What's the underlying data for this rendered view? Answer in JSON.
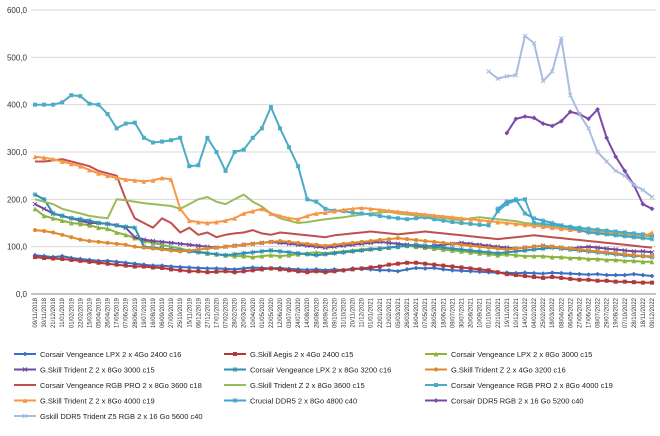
{
  "chart_data": {
    "type": "line",
    "ylim": [
      0,
      600
    ],
    "yticks": [
      "0,0",
      "100,0",
      "200,0",
      "300,0",
      "400,0",
      "500,0",
      "600,0"
    ],
    "grid": true,
    "legend_placement": "bottom",
    "categories": [
      "09/11/2018",
      "30/11/2018",
      "21/12/2018",
      "11/01/2019",
      "01/02/2019",
      "22/02/2019",
      "15/03/2019",
      "05/04/2019",
      "26/04/2019",
      "17/05/2019",
      "07/06/2019",
      "28/06/2019",
      "19/07/2019",
      "16/08/2019",
      "06/09/2019",
      "27/09/2019",
      "25/10/2019",
      "15/11/2019",
      "06/12/2019",
      "27/12/2019",
      "17/01/2020",
      "07/02/2020",
      "28/02/2020",
      "20/03/2020",
      "10/04/2020",
      "01/05/2020",
      "22/05/2020",
      "12/06/2020",
      "03/07/2020",
      "24/07/2020",
      "14/08/2020",
      "28/08/2020",
      "18/09/2020",
      "09/10/2020",
      "31/10/2020",
      "20/11/2020",
      "11/12/2020",
      "01/01/2021",
      "22/01/2021",
      "12/02/2021",
      "05/03/2021",
      "26/03/2021",
      "16/04/2021",
      "07/05/2021",
      "28/05/2021",
      "18/06/2021",
      "09/07/2021",
      "30/07/2021",
      "20/08/2021",
      "10/09/2021",
      "01/10/2021",
      "22/10/2021",
      "19/11/2021",
      "10/12/2021",
      "14/01/2022",
      "04/02/2022",
      "25/02/2022",
      "18/03/2022",
      "08/04/2022",
      "06/05/2022",
      "27/05/2022",
      "17/06/2022",
      "08/07/2022",
      "29/07/2022",
      "19/08/2022",
      "07/10/2022",
      "28/10/2022",
      "18/11/2022",
      "09/12/2022"
    ],
    "series": [
      {
        "name": "Corsair Vengeance LPX 2 x 4Go 2400 c16",
        "color": "#3a6fc4",
        "marker": "diamond",
        "values": [
          82,
          80,
          78,
          80,
          76,
          74,
          72,
          70,
          70,
          68,
          66,
          64,
          62,
          60,
          60,
          58,
          57,
          56,
          55,
          54,
          54,
          53,
          52,
          54,
          56,
          55,
          54,
          55,
          53,
          52,
          51,
          52,
          50,
          52,
          50,
          54,
          53,
          52,
          50,
          50,
          48,
          52,
          55,
          54,
          55,
          52,
          50,
          49,
          48,
          47,
          46,
          45,
          45,
          44,
          45,
          44,
          43,
          45,
          44,
          43,
          42,
          41,
          42,
          40,
          40,
          40,
          42,
          40,
          38
        ]
      },
      {
        "name": "G.Skill Aegis 2 x 4Go 2400 c15",
        "color": "#b03a3a",
        "marker": "square",
        "values": [
          78,
          76,
          75,
          74,
          72,
          70,
          68,
          66,
          64,
          62,
          60,
          58,
          58,
          56,
          55,
          52,
          50,
          48,
          48,
          46,
          47,
          48,
          46,
          48,
          50,
          52,
          54,
          52,
          50,
          48,
          46,
          48,
          46,
          48,
          50,
          52,
          54,
          56,
          58,
          62,
          64,
          66,
          66,
          64,
          62,
          60,
          58,
          56,
          54,
          52,
          50,
          46,
          42,
          40,
          38,
          36,
          34,
          36,
          34,
          32,
          30,
          30,
          28,
          28,
          26,
          26,
          25,
          24,
          24
        ]
      },
      {
        "name": "Corsair Vengeance LPX 2 x 8Go 3000 c15",
        "color": "#8db43a",
        "marker": "triangle",
        "values": [
          180,
          165,
          160,
          155,
          150,
          148,
          145,
          140,
          138,
          130,
          125,
          118,
          112,
          108,
          104,
          100,
          96,
          92,
          90,
          86,
          84,
          82,
          80,
          80,
          78,
          80,
          82,
          80,
          82,
          84,
          86,
          88,
          86,
          88,
          90,
          92,
          94,
          96,
          96,
          98,
          100,
          102,
          100,
          98,
          96,
          94,
          92,
          90,
          88,
          86,
          84,
          82,
          84,
          82,
          80,
          80,
          80,
          78,
          78,
          76,
          76,
          74,
          74,
          72,
          72,
          70,
          70,
          68,
          68
        ]
      },
      {
        "name": "G.Skill Trident Z 2 x 8Go 3000 c15",
        "color": "#6f4aa0",
        "marker": "x",
        "values": [
          190,
          180,
          170,
          165,
          160,
          155,
          150,
          150,
          148,
          145,
          140,
          120,
          115,
          112,
          110,
          108,
          106,
          104,
          102,
          100,
          98,
          100,
          102,
          104,
          106,
          108,
          110,
          108,
          106,
          104,
          102,
          100,
          98,
          100,
          102,
          104,
          106,
          108,
          110,
          108,
          106,
          104,
          102,
          100,
          102,
          104,
          106,
          108,
          106,
          104,
          102,
          100,
          98,
          96,
          98,
          100,
          102,
          100,
          98,
          96,
          98,
          100,
          98,
          96,
          94,
          92,
          90,
          90,
          88
        ]
      },
      {
        "name": "Corsair Vengeance LPX 2 x 8Go 3200 c16",
        "color": "#2f8fb0",
        "marker": "star",
        "values": [
          210,
          200,
          170,
          165,
          160,
          158,
          155,
          150,
          148,
          145,
          142,
          140,
          100,
          98,
          96,
          94,
          92,
          90,
          88,
          86,
          84,
          82,
          84,
          86,
          88,
          90,
          92,
          90,
          88,
          86,
          84,
          82,
          84,
          86,
          88,
          90,
          92,
          94,
          96,
          98,
          100,
          102,
          104,
          102,
          100,
          98,
          96,
          94,
          92,
          90,
          88,
          86,
          88,
          90,
          92,
          94,
          96,
          98,
          96,
          94,
          92,
          90,
          88,
          86,
          84,
          82,
          80,
          80,
          78
        ]
      },
      {
        "name": "G.Skill Trident Z 2 x 4Go 3200 c16",
        "color": "#e08a2e",
        "marker": "circle",
        "values": [
          135,
          133,
          130,
          125,
          120,
          115,
          112,
          110,
          108,
          106,
          104,
          100,
          98,
          96,
          94,
          92,
          90,
          92,
          94,
          96,
          98,
          100,
          102,
          104,
          106,
          108,
          110,
          112,
          110,
          108,
          106,
          104,
          102,
          104,
          106,
          108,
          110,
          112,
          114,
          116,
          118,
          116,
          114,
          112,
          110,
          108,
          106,
          104,
          102,
          100,
          98,
          96,
          94,
          96,
          98,
          100,
          102,
          100,
          98,
          96,
          94,
          92,
          90,
          88,
          86,
          84,
          82,
          80,
          80
        ]
      },
      {
        "name": "Corsair Vengeance RGB PRO 2 x 8Go 3600 c18",
        "color": "#c0504d",
        "marker": "none",
        "values": [
          280,
          280,
          282,
          285,
          280,
          275,
          270,
          260,
          255,
          250,
          200,
          160,
          150,
          140,
          160,
          150,
          130,
          140,
          125,
          130,
          120,
          125,
          128,
          130,
          135,
          128,
          125,
          130,
          128,
          126,
          124,
          122,
          120,
          124,
          126,
          128,
          130,
          132,
          130,
          128,
          126,
          128,
          130,
          132,
          130,
          128,
          126,
          124,
          122,
          120,
          118,
          116,
          118,
          120,
          122,
          124,
          122,
          120,
          118,
          116,
          114,
          112,
          110,
          108,
          106,
          104,
          102,
          100,
          98
        ]
      },
      {
        "name": "G.Skill Trident Z 2 x 8Go 3600 c15",
        "color": "#9bbb59",
        "marker": "none",
        "values": [
          200,
          195,
          190,
          180,
          175,
          170,
          165,
          162,
          160,
          200,
          198,
          195,
          192,
          190,
          188,
          186,
          180,
          190,
          200,
          205,
          195,
          190,
          200,
          210,
          195,
          185,
          170,
          160,
          155,
          150,
          152,
          155,
          158,
          160,
          162,
          165,
          168,
          170,
          172,
          174,
          170,
          168,
          166,
          164,
          162,
          160,
          158,
          156,
          160,
          162,
          160,
          158,
          156,
          154,
          150,
          148,
          146,
          144,
          142,
          140,
          138,
          136,
          134,
          132,
          130,
          128,
          126,
          124,
          120
        ]
      },
      {
        "name": "Corsair Vengeance RGB PRO 2 x 8Go 4000 c19",
        "color": "#4bacc6",
        "marker": "square",
        "values": [
          400,
          400,
          400,
          405,
          420,
          418,
          402,
          400,
          380,
          350,
          360,
          362,
          330,
          320,
          322,
          325,
          330,
          270,
          272,
          330,
          300,
          260,
          300,
          305,
          330,
          350,
          395,
          350,
          310,
          270,
          200,
          195,
          180,
          176,
          175,
          172,
          170,
          168,
          165,
          162,
          160,
          158,
          160,
          162,
          158,
          155,
          152,
          150,
          148,
          146,
          145,
          175,
          190,
          198,
          200,
          150,
          148,
          146,
          144,
          142,
          140,
          138,
          136,
          134,
          132,
          130,
          128,
          126,
          124
        ]
      },
      {
        "name": "G.Skill Trident Z 2 x 8Go 4000 c19",
        "color": "#f79646",
        "marker": "triangle",
        "values": [
          290,
          288,
          285,
          280,
          275,
          270,
          262,
          255,
          250,
          245,
          242,
          240,
          238,
          240,
          245,
          242,
          180,
          155,
          152,
          150,
          152,
          155,
          160,
          170,
          175,
          180,
          170,
          165,
          160,
          158,
          165,
          170,
          172,
          175,
          178,
          180,
          182,
          180,
          178,
          176,
          174,
          172,
          170,
          168,
          166,
          164,
          162,
          160,
          158,
          156,
          154,
          152,
          150,
          148,
          146,
          144,
          142,
          140,
          138,
          136,
          134,
          132,
          130,
          128,
          126,
          124,
          122,
          120,
          130
        ]
      },
      {
        "name": "Crucial DDR5 2 x 8Go 4800 c40",
        "color": "#3fa7c9",
        "marker": "star",
        "values": [
          null,
          null,
          null,
          null,
          null,
          null,
          null,
          null,
          null,
          null,
          null,
          null,
          null,
          null,
          null,
          null,
          null,
          null,
          null,
          null,
          null,
          null,
          null,
          null,
          null,
          null,
          null,
          null,
          null,
          null,
          null,
          null,
          null,
          null,
          null,
          null,
          null,
          null,
          null,
          null,
          null,
          null,
          null,
          null,
          null,
          null,
          null,
          null,
          null,
          null,
          null,
          180,
          195,
          200,
          170,
          160,
          155,
          150,
          145,
          140,
          135,
          130,
          128,
          126,
          124,
          122,
          120,
          118,
          116
        ]
      },
      {
        "name": "Corsair DDR5 RGB 2 x 16 Go 5200 c40",
        "color": "#7a4aa8",
        "marker": "diamond",
        "values": [
          null,
          null,
          null,
          null,
          null,
          null,
          null,
          null,
          null,
          null,
          null,
          null,
          null,
          null,
          null,
          null,
          null,
          null,
          null,
          null,
          null,
          null,
          null,
          null,
          null,
          null,
          null,
          null,
          null,
          null,
          null,
          null,
          null,
          null,
          null,
          null,
          null,
          null,
          null,
          null,
          null,
          null,
          null,
          null,
          null,
          null,
          null,
          null,
          null,
          null,
          null,
          null,
          340,
          370,
          375,
          372,
          360,
          355,
          365,
          385,
          380,
          370,
          390,
          330,
          290,
          260,
          230,
          190,
          180
        ]
      },
      {
        "name": "Gskill DDR5 Trident Z5 RGB 2 x 16 Go 5600 c40",
        "color": "#a8bde0",
        "marker": "x",
        "values": [
          null,
          null,
          null,
          null,
          null,
          null,
          null,
          null,
          null,
          null,
          null,
          null,
          null,
          null,
          null,
          null,
          null,
          null,
          null,
          null,
          null,
          null,
          null,
          null,
          null,
          null,
          null,
          null,
          null,
          null,
          null,
          null,
          null,
          null,
          null,
          null,
          null,
          null,
          null,
          null,
          null,
          null,
          null,
          null,
          null,
          null,
          null,
          null,
          null,
          null,
          470,
          455,
          460,
          462,
          545,
          530,
          450,
          470,
          540,
          420,
          380,
          350,
          300,
          280,
          260,
          250,
          230,
          220,
          205
        ]
      }
    ]
  }
}
